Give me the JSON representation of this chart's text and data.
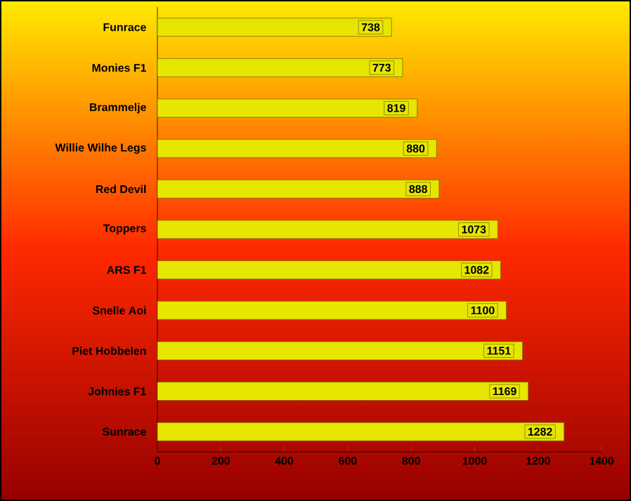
{
  "chart_data": {
    "type": "bar",
    "orientation": "horizontal",
    "categories": [
      "Funrace",
      "Monies F1",
      "Brammelje",
      "Willie Wilhe Legs",
      "Red Devil",
      "Toppers",
      "ARS F1",
      "Snelle Aoi",
      "Piet Hobbelen",
      "Johnies F1",
      "Sunrace"
    ],
    "values": [
      738,
      773,
      819,
      880,
      888,
      1073,
      1082,
      1100,
      1151,
      1169,
      1282
    ],
    "color": "#e6e600",
    "data_labels": true,
    "xlim": [
      0,
      1400
    ],
    "xticks": [
      0,
      200,
      400,
      600,
      800,
      1000,
      1200,
      1400
    ],
    "grid": false
  }
}
